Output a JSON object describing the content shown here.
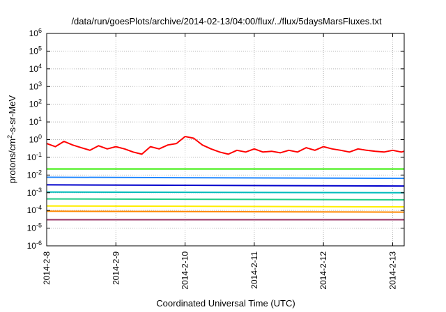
{
  "chart_data": {
    "type": "line",
    "title": "/data/run/goesPlots/archive/2014-02-13/04:00/flux/../flux/5daysMarsFluxes.txt",
    "xlabel": "Coordinated Universal Time (UTC)",
    "ylabel_base": "protons/cm",
    "ylabel_sup": "2",
    "ylabel_rest": "-s-sr-MeV",
    "yscale": "log",
    "ylim": [
      1e-06,
      1000000.0
    ],
    "xlim": [
      "2014-02-08T00:00",
      "2014-02-13T04:00"
    ],
    "y_ticks": [
      {
        "value": 1e-06,
        "base": "10",
        "exp": "-6"
      },
      {
        "value": 1e-05,
        "base": "10",
        "exp": "-5"
      },
      {
        "value": 0.0001,
        "base": "10",
        "exp": "-4"
      },
      {
        "value": 0.001,
        "base": "10",
        "exp": "-3"
      },
      {
        "value": 0.01,
        "base": "10",
        "exp": "-2"
      },
      {
        "value": 0.1,
        "base": "10",
        "exp": "-1"
      },
      {
        "value": 1,
        "base": "10",
        "exp": "0"
      },
      {
        "value": 10,
        "base": "10",
        "exp": "1"
      },
      {
        "value": 100,
        "base": "10",
        "exp": "2"
      },
      {
        "value": 1000,
        "base": "10",
        "exp": "3"
      },
      {
        "value": 10000,
        "base": "10",
        "exp": "4"
      },
      {
        "value": 100000,
        "base": "10",
        "exp": "5"
      },
      {
        "value": 1000000,
        "base": "10",
        "exp": "6"
      }
    ],
    "x_ticks": [
      {
        "value": "2014-02-08T00:00",
        "label": "2014-2-8"
      },
      {
        "value": "2014-02-09T00:00",
        "label": "2014-2-9"
      },
      {
        "value": "2014-02-10T00:00",
        "label": "2014-2-10"
      },
      {
        "value": "2014-02-11T00:00",
        "label": "2014-2-11"
      },
      {
        "value": "2014-02-12T00:00",
        "label": "2014-2-12"
      },
      {
        "value": "2014-02-13T00:00",
        "label": "2014-2-13"
      }
    ],
    "grid": true,
    "series": [
      {
        "color": "#ff0000",
        "times": [
          "2014-02-08T00:00",
          "2014-02-08T03:00",
          "2014-02-08T06:00",
          "2014-02-08T09:00",
          "2014-02-08T12:00",
          "2014-02-08T15:00",
          "2014-02-08T18:00",
          "2014-02-08T21:00",
          "2014-02-09T00:00",
          "2014-02-09T03:00",
          "2014-02-09T06:00",
          "2014-02-09T09:00",
          "2014-02-09T12:00",
          "2014-02-09T15:00",
          "2014-02-09T18:00",
          "2014-02-09T21:00",
          "2014-02-10T00:00",
          "2014-02-10T03:00",
          "2014-02-10T06:00",
          "2014-02-10T09:00",
          "2014-02-10T12:00",
          "2014-02-10T15:00",
          "2014-02-10T18:00",
          "2014-02-10T21:00",
          "2014-02-11T00:00",
          "2014-02-11T03:00",
          "2014-02-11T06:00",
          "2014-02-11T09:00",
          "2014-02-11T12:00",
          "2014-02-11T15:00",
          "2014-02-11T18:00",
          "2014-02-11T21:00",
          "2014-02-12T00:00",
          "2014-02-12T03:00",
          "2014-02-12T06:00",
          "2014-02-12T09:00",
          "2014-02-12T12:00",
          "2014-02-12T15:00",
          "2014-02-12T18:00",
          "2014-02-12T21:00",
          "2014-02-13T00:00",
          "2014-02-13T03:00",
          "2014-02-13T04:00"
        ],
        "values": [
          0.6,
          0.4,
          0.8,
          0.5,
          0.35,
          0.25,
          0.45,
          0.3,
          0.4,
          0.3,
          0.2,
          0.15,
          0.4,
          0.3,
          0.5,
          0.6,
          1.5,
          1.2,
          0.5,
          0.3,
          0.2,
          0.15,
          0.25,
          0.2,
          0.3,
          0.2,
          0.22,
          0.18,
          0.25,
          0.2,
          0.35,
          0.25,
          0.4,
          0.3,
          0.25,
          0.2,
          0.3,
          0.25,
          0.22,
          0.2,
          0.25,
          0.2,
          0.22
        ]
      },
      {
        "color": "#33ee00",
        "times": [
          "2014-02-08T00:00",
          "2014-02-13T04:00"
        ],
        "values": [
          0.022,
          0.022
        ]
      },
      {
        "color": "#2288ff",
        "times": [
          "2014-02-08T00:00",
          "2014-02-13T04:00"
        ],
        "values": [
          0.0075,
          0.0065
        ]
      },
      {
        "color": "#0000cc",
        "times": [
          "2014-02-08T00:00",
          "2014-02-13T04:00"
        ],
        "values": [
          0.0028,
          0.0024
        ]
      },
      {
        "color": "#00bbbb",
        "times": [
          "2014-02-08T00:00",
          "2014-02-13T04:00"
        ],
        "values": [
          0.0011,
          0.001
        ]
      },
      {
        "color": "#22cc88",
        "times": [
          "2014-02-08T00:00",
          "2014-02-13T04:00"
        ],
        "values": [
          0.00045,
          0.0004
        ]
      },
      {
        "color": "#ffee00",
        "times": [
          "2014-02-08T00:00",
          "2014-02-13T04:00"
        ],
        "values": [
          0.00018,
          0.00016
        ]
      },
      {
        "color": "#ff8800",
        "times": [
          "2014-02-08T00:00",
          "2014-02-13T04:00"
        ],
        "values": [
          9e-05,
          8e-05
        ]
      },
      {
        "color": "#993366",
        "times": [
          "2014-02-08T00:00",
          "2014-02-13T04:00"
        ],
        "values": [
          3e-05,
          3e-05
        ]
      }
    ]
  }
}
